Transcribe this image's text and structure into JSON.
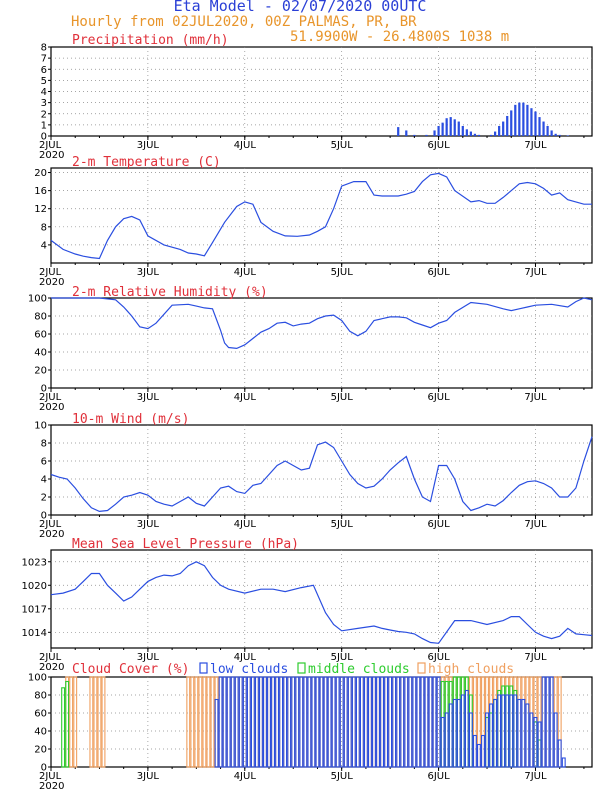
{
  "header": {
    "title": "Eta Model - 02/07/2020 00UTC",
    "subtitle": "Hourly from 02JUL2020, 00Z  PALMAS, PR, BR",
    "location": "51.9900W - 26.4800S    1038  m",
    "title_color": "#2a3fd6",
    "subtitle_color": "#e8952b"
  },
  "colors": {
    "label": "#e0303a",
    "series": "#2a4ee0",
    "low": "#2a4ee0",
    "mid": "#2ecc2e",
    "high": "#f0a060",
    "grid": "#888888"
  },
  "day_labels": [
    "2JUL",
    "3JUL",
    "4JUL",
    "5JUL",
    "6JUL",
    "7JUL"
  ],
  "year_label": "2020",
  "chart_data": [
    {
      "type": "bar",
      "title": "Precipitation (mm/h)",
      "ylim": [
        0,
        8
      ],
      "yticks": [
        "0",
        "1",
        "2",
        "3",
        "4",
        "5",
        "6",
        "7",
        "8"
      ],
      "x_hours": [
        86,
        88,
        90,
        93,
        95,
        96,
        97,
        98,
        99,
        100,
        101,
        102,
        103,
        104,
        105,
        106,
        109,
        110,
        111,
        112,
        113,
        114,
        115,
        116,
        117,
        118,
        119,
        120,
        121,
        122,
        123,
        124,
        125,
        126,
        128
      ],
      "values": [
        0.8,
        0.5,
        0.1,
        0.1,
        0.5,
        0.9,
        1.2,
        1.6,
        1.7,
        1.5,
        1.3,
        0.9,
        0.6,
        0.4,
        0.2,
        0.1,
        0.1,
        0.4,
        0.9,
        1.3,
        1.8,
        2.3,
        2.8,
        3.0,
        3.0,
        2.8,
        2.5,
        2.2,
        1.7,
        1.3,
        0.9,
        0.5,
        0.2,
        0.1,
        0.05
      ]
    },
    {
      "type": "line",
      "title": "2-m Temperature (C)",
      "ylim": [
        0,
        21
      ],
      "yticks": [
        "4",
        "8",
        "12",
        "16",
        "20"
      ],
      "x": [
        0,
        3,
        6,
        8,
        10,
        12,
        14,
        16,
        18,
        20,
        22,
        24,
        28,
        32,
        34,
        36,
        38,
        40,
        43,
        46,
        48,
        50,
        52,
        55,
        58,
        61,
        64,
        66,
        68,
        70,
        72,
        75,
        78,
        80,
        82,
        84,
        86,
        88,
        90,
        92,
        94,
        96,
        98,
        100,
        104,
        106,
        108,
        110,
        112,
        114,
        116,
        118,
        120,
        122,
        124,
        126,
        128,
        132,
        134
      ],
      "values": [
        5,
        3,
        2,
        1.5,
        1.2,
        1.0,
        5,
        8,
        9.8,
        10.3,
        9.5,
        6,
        4,
        3,
        2.2,
        2,
        1.6,
        4.5,
        9,
        12.5,
        13.5,
        13,
        9,
        7,
        6,
        5.9,
        6.2,
        7,
        8,
        12,
        17,
        18,
        18,
        15,
        14.8,
        14.8,
        14.8,
        15.2,
        15.8,
        18,
        19.5,
        19.8,
        19,
        16,
        13.5,
        13.8,
        13.2,
        13.2,
        14.5,
        16,
        17.5,
        17.8,
        17.5,
        16.5,
        15,
        15.5,
        14,
        13,
        13
      ]
    },
    {
      "type": "line",
      "title": "2-m Relative Humidity (%)",
      "ylim": [
        0,
        100
      ],
      "yticks": [
        "0",
        "20",
        "40",
        "60",
        "80",
        "100"
      ],
      "x": [
        0,
        6,
        12,
        16,
        18,
        20,
        22,
        24,
        26,
        30,
        34,
        36,
        38,
        40,
        42,
        43,
        44,
        46,
        48,
        52,
        54,
        56,
        58,
        60,
        62,
        64,
        66,
        68,
        70,
        72,
        74,
        76,
        78,
        80,
        84,
        86,
        88,
        90,
        92,
        94,
        96,
        98,
        100,
        104,
        108,
        112,
        114,
        116,
        118,
        120,
        124,
        128,
        130,
        132,
        134
      ],
      "values": [
        100,
        100,
        100,
        98,
        90,
        80,
        68,
        66,
        72,
        92,
        93,
        91,
        89,
        88,
        64,
        50,
        45,
        44,
        48,
        62,
        66,
        72,
        73,
        69,
        71,
        72,
        77,
        80,
        81,
        75,
        63,
        58,
        63,
        75,
        79,
        79,
        78,
        73,
        70,
        67,
        72,
        75,
        84,
        95,
        93,
        88,
        86,
        88,
        90,
        92,
        93,
        90,
        96,
        100,
        98
      ]
    },
    {
      "type": "line",
      "title": "10-m Wind (m/s)",
      "ylim": [
        0,
        10
      ],
      "yticks": [
        "0",
        "2",
        "4",
        "6",
        "8",
        "10"
      ],
      "x": [
        0,
        2,
        4,
        6,
        8,
        10,
        12,
        14,
        16,
        18,
        20,
        22,
        24,
        26,
        28,
        30,
        32,
        34,
        36,
        38,
        40,
        42,
        44,
        46,
        48,
        50,
        52,
        54,
        56,
        58,
        60,
        62,
        64,
        66,
        68,
        70,
        72,
        74,
        76,
        78,
        80,
        82,
        84,
        86,
        88,
        90,
        92,
        94,
        96,
        98,
        100,
        102,
        104,
        106,
        108,
        110,
        112,
        114,
        116,
        118,
        120,
        122,
        124,
        126,
        128,
        130,
        132,
        134
      ],
      "values": [
        4.5,
        4.2,
        4,
        3,
        1.8,
        0.8,
        0.4,
        0.5,
        1.2,
        2,
        2.2,
        2.5,
        2.2,
        1.5,
        1.2,
        1,
        1.5,
        2,
        1.3,
        1,
        2,
        3,
        3.2,
        2.6,
        2.4,
        3.3,
        3.5,
        4.5,
        5.5,
        6,
        5.5,
        5,
        5.2,
        7.8,
        8.1,
        7.5,
        6,
        4.5,
        3.5,
        3,
        3.2,
        4,
        5,
        5.8,
        6.5,
        4,
        2,
        1.5,
        5.5,
        5.5,
        4,
        1.5,
        0.5,
        0.8,
        1.2,
        1,
        1.6,
        2.5,
        3.3,
        3.7,
        3.8,
        3.5,
        3,
        2,
        2,
        3,
        6,
        8.7
      ]
    },
    {
      "type": "line",
      "title": "Mean Sea Level Pressure (hPa)",
      "ylim": [
        1012,
        1024.5
      ],
      "yticks": [
        "1014",
        "1017",
        "1020",
        "1023"
      ],
      "x": [
        0,
        3,
        6,
        8,
        10,
        12,
        14,
        16,
        18,
        20,
        22,
        24,
        26,
        28,
        30,
        32,
        34,
        36,
        38,
        40,
        42,
        44,
        48,
        52,
        55,
        58,
        62,
        65,
        68,
        70,
        72,
        76,
        80,
        82,
        84,
        86,
        88,
        90,
        92,
        94,
        96,
        100,
        104,
        108,
        112,
        114,
        116,
        118,
        120,
        122,
        124,
        126,
        128,
        130,
        132,
        134
      ],
      "values": [
        1018.8,
        1019,
        1019.5,
        1020.5,
        1021.5,
        1021.5,
        1020,
        1019,
        1018,
        1018.5,
        1019.5,
        1020.5,
        1021,
        1021.3,
        1021.2,
        1021.5,
        1022.5,
        1023,
        1022.5,
        1021,
        1020,
        1019.5,
        1019,
        1019.5,
        1019.5,
        1019.2,
        1019.7,
        1020,
        1016.5,
        1015,
        1014.2,
        1014.5,
        1014.8,
        1014.5,
        1014.3,
        1014.1,
        1014,
        1013.8,
        1013.2,
        1012.7,
        1012.6,
        1015.5,
        1015.5,
        1015,
        1015.5,
        1016,
        1016,
        1015,
        1014,
        1013.5,
        1013.2,
        1013.5,
        1014.5,
        1013.8,
        1013.7,
        1013.6
      ]
    },
    {
      "type": "bar",
      "title": "Cloud Cover (%)",
      "legend": [
        "low clouds",
        "middle clouds",
        "high clouds"
      ],
      "ylim": [
        0,
        100
      ],
      "yticks": [
        "0",
        "20",
        "40",
        "60",
        "80",
        "100"
      ],
      "high_hours": [
        4,
        5,
        6,
        10,
        11,
        12,
        13,
        34,
        35,
        36,
        37,
        38,
        39,
        40,
        41,
        42,
        43,
        44,
        45,
        46,
        47,
        48,
        49,
        50,
        51,
        52,
        53,
        54,
        55,
        56,
        57,
        58,
        59,
        60,
        61,
        62,
        63,
        64,
        65,
        66,
        67,
        68,
        69,
        70,
        71,
        72,
        73,
        74,
        75,
        76,
        77,
        78,
        79,
        80,
        81,
        82,
        83,
        84,
        85,
        86,
        87,
        88,
        89,
        90,
        91,
        92,
        93,
        94,
        95,
        96,
        97,
        98,
        99,
        100,
        101,
        102,
        103,
        104,
        105,
        106,
        107,
        108,
        109,
        110,
        111,
        112,
        113,
        114,
        115,
        116,
        117,
        118,
        119,
        120,
        121,
        122,
        123,
        124,
        125,
        126
      ],
      "high_values": [
        100,
        100,
        100,
        100,
        100,
        100,
        100,
        100,
        100,
        100,
        100,
        100,
        100,
        100,
        100,
        100,
        100,
        100,
        100,
        100,
        100,
        100,
        100,
        100,
        100,
        100,
        100,
        100,
        100,
        100,
        100,
        100,
        100,
        100,
        100,
        100,
        100,
        100,
        100,
        100,
        100,
        100,
        100,
        100,
        100,
        100,
        100,
        100,
        100,
        100,
        100,
        100,
        100,
        100,
        100,
        100,
        100,
        100,
        100,
        100,
        100,
        100,
        100,
        100,
        100,
        100,
        100,
        100,
        100,
        100,
        100,
        100,
        100,
        100,
        100,
        100,
        100,
        100,
        100,
        100,
        100,
        100,
        100,
        100,
        100,
        100,
        100,
        100,
        100,
        100,
        100,
        100,
        100,
        100,
        100,
        100,
        100,
        100,
        100,
        100
      ],
      "mid_hours": [
        3,
        4,
        97,
        98,
        99,
        100,
        101,
        102,
        103,
        104,
        108,
        109,
        110,
        111,
        112,
        113,
        114,
        115,
        120,
        121
      ],
      "mid_values": [
        88,
        95,
        95,
        95,
        95,
        100,
        100,
        100,
        100,
        80,
        55,
        60,
        75,
        85,
        90,
        90,
        90,
        85,
        50,
        30
      ],
      "low_hours": [
        41,
        42,
        43,
        44,
        45,
        46,
        47,
        48,
        49,
        50,
        51,
        52,
        53,
        54,
        55,
        56,
        57,
        58,
        59,
        60,
        61,
        62,
        63,
        64,
        65,
        66,
        67,
        68,
        69,
        70,
        71,
        72,
        73,
        74,
        75,
        76,
        77,
        78,
        79,
        80,
        81,
        82,
        83,
        84,
        85,
        86,
        87,
        88,
        89,
        90,
        91,
        92,
        93,
        94,
        95,
        96,
        97,
        98,
        99,
        100,
        101,
        102,
        103,
        104,
        105,
        106,
        107,
        108,
        109,
        110,
        111,
        112,
        113,
        114,
        115,
        116,
        117,
        118,
        119,
        120,
        121,
        122,
        123,
        124,
        125,
        126,
        127
      ],
      "low_values": [
        75,
        100,
        100,
        100,
        100,
        100,
        100,
        100,
        100,
        100,
        100,
        100,
        100,
        100,
        100,
        100,
        100,
        100,
        100,
        100,
        100,
        100,
        100,
        100,
        100,
        100,
        100,
        100,
        100,
        100,
        100,
        100,
        100,
        100,
        100,
        100,
        100,
        100,
        100,
        100,
        100,
        100,
        100,
        100,
        100,
        100,
        100,
        100,
        100,
        100,
        100,
        100,
        100,
        100,
        100,
        100,
        55,
        60,
        70,
        75,
        75,
        80,
        85,
        60,
        35,
        25,
        35,
        60,
        70,
        75,
        80,
        80,
        80,
        80,
        80,
        75,
        75,
        70,
        60,
        55,
        50,
        100,
        100,
        100,
        60,
        30,
        10
      ]
    }
  ]
}
